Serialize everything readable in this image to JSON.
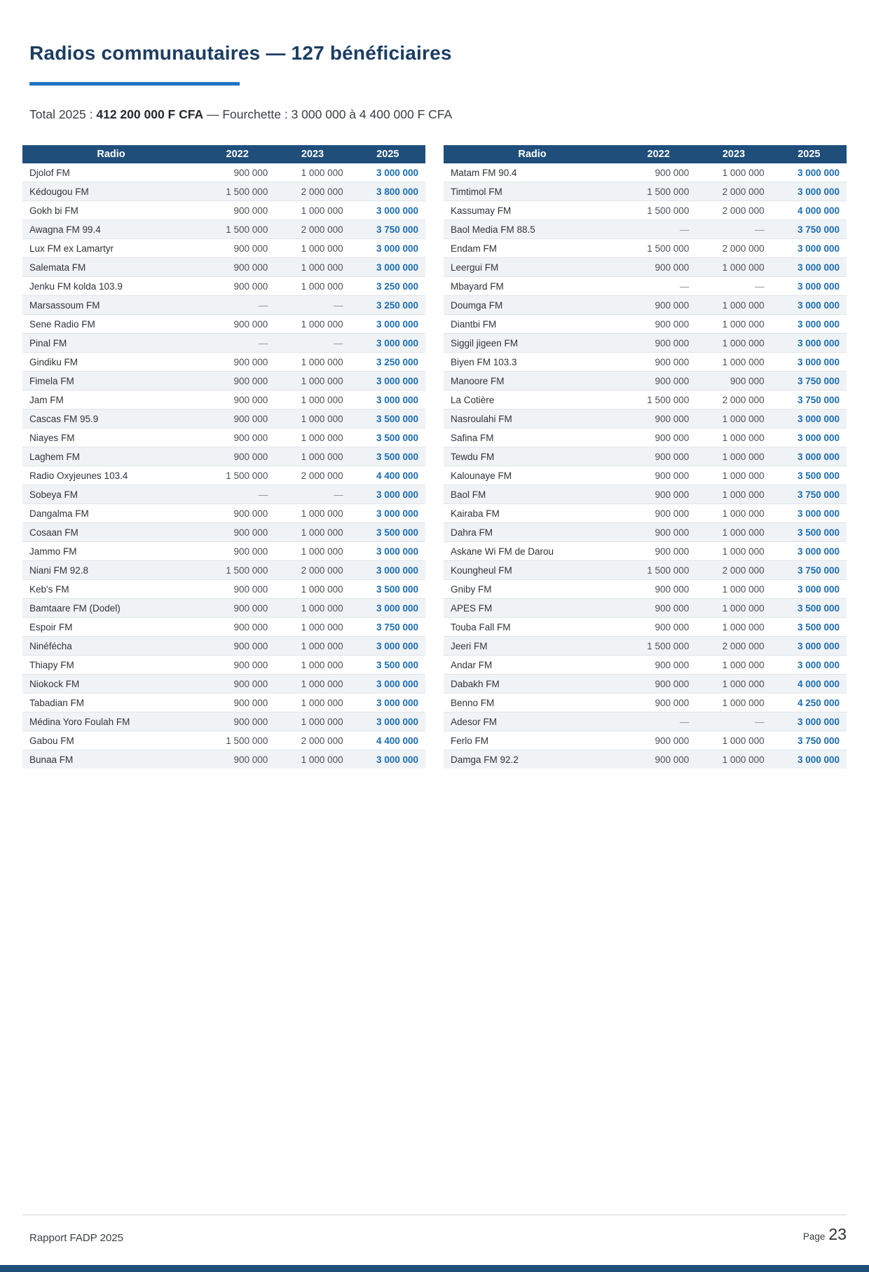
{
  "colors": {
    "header_bg": "#1f4e7b",
    "accent": "#2173c4",
    "title_color": "#1c3d63",
    "value_2025": "#1a6cb3"
  },
  "page": {
    "title": "Radios communautaires — 127 bénéficiaires"
  },
  "summary": {
    "label": "Total 2025 : ",
    "total": "412 200 000 F CFA",
    "separator": " — ",
    "range": "Fourchette : 3 000 000 à 4 400 000 F CFA"
  },
  "tables": [
    {
      "columns": [
        "Radio",
        "2022",
        "2023",
        "2025"
      ],
      "rows": [
        [
          "Djolof FM",
          "900 000",
          "1 000 000",
          "3 000 000"
        ],
        [
          "Kédougou FM",
          "1 500 000",
          "2 000 000",
          "3 800 000"
        ],
        [
          "Gokh bi FM",
          "900 000",
          "1 000 000",
          "3 000 000"
        ],
        [
          "Awagna FM 99.4",
          "1 500 000",
          "2 000 000",
          "3 750 000"
        ],
        [
          "Lux FM ex Lamartyr",
          "900 000",
          "1 000 000",
          "3 000 000"
        ],
        [
          "Salemata FM",
          "900 000",
          "1 000 000",
          "3 000 000"
        ],
        [
          "Jenku FM kolda 103.9",
          "900 000",
          "1 000 000",
          "3 250 000"
        ],
        [
          "Marsassoum FM",
          "—",
          "—",
          "3 250 000"
        ],
        [
          "Sene Radio FM",
          "900 000",
          "1 000 000",
          "3 000 000"
        ],
        [
          "Pinal FM",
          "—",
          "—",
          "3 000 000"
        ],
        [
          "Gindiku FM",
          "900 000",
          "1 000 000",
          "3 250 000"
        ],
        [
          "Fimela FM",
          "900 000",
          "1 000 000",
          "3 000 000"
        ],
        [
          "Jam FM",
          "900 000",
          "1 000 000",
          "3 000 000"
        ],
        [
          "Cascas FM 95.9",
          "900 000",
          "1 000 000",
          "3 500 000"
        ],
        [
          "Niayes FM",
          "900 000",
          "1 000 000",
          "3 500 000"
        ],
        [
          "Laghem FM",
          "900 000",
          "1 000 000",
          "3 500 000"
        ],
        [
          "Radio Oxyjeunes 103.4",
          "1 500 000",
          "2 000 000",
          "4 400 000"
        ],
        [
          "Sobeya FM",
          "—",
          "—",
          "3 000 000"
        ],
        [
          "Dangalma FM",
          "900 000",
          "1 000 000",
          "3 000 000"
        ],
        [
          "Cosaan FM",
          "900 000",
          "1 000 000",
          "3 500 000"
        ],
        [
          "Jammo FM",
          "900 000",
          "1 000 000",
          "3 000 000"
        ],
        [
          "Niani FM 92.8",
          "1 500 000",
          "2 000 000",
          "3 000 000"
        ],
        [
          "Keb's FM",
          "900 000",
          "1 000 000",
          "3 500 000"
        ],
        [
          "Bamtaare FM (Dodel)",
          "900 000",
          "1 000 000",
          "3 000 000"
        ],
        [
          "Espoir FM",
          "900 000",
          "1 000 000",
          "3 750 000"
        ],
        [
          "Ninéfécha",
          "900 000",
          "1 000 000",
          "3 000 000"
        ],
        [
          "Thiapy FM",
          "900 000",
          "1 000 000",
          "3 500 000"
        ],
        [
          "Niokock FM",
          "900 000",
          "1 000 000",
          "3 000 000"
        ],
        [
          "Tabadian FM",
          "900 000",
          "1 000 000",
          "3 000 000"
        ],
        [
          "Médina Yoro Foulah FM",
          "900 000",
          "1 000 000",
          "3 000 000"
        ],
        [
          "Gabou FM",
          "1 500 000",
          "2 000 000",
          "4 400 000"
        ],
        [
          "Bunaa FM",
          "900 000",
          "1 000 000",
          "3 000 000"
        ]
      ]
    },
    {
      "columns": [
        "Radio",
        "2022",
        "2023",
        "2025"
      ],
      "rows": [
        [
          "Matam FM 90.4",
          "900 000",
          "1 000 000",
          "3 000 000"
        ],
        [
          "Timtimol FM",
          "1 500 000",
          "2 000 000",
          "3 000 000"
        ],
        [
          "Kassumay FM",
          "1 500 000",
          "2 000 000",
          "4 000 000"
        ],
        [
          "Baol Media FM 88.5",
          "—",
          "—",
          "3 750 000"
        ],
        [
          "Endam FM",
          "1 500 000",
          "2 000 000",
          "3 000 000"
        ],
        [
          "Leergui FM",
          "900 000",
          "1 000 000",
          "3 000 000"
        ],
        [
          "Mbayard FM",
          "—",
          "—",
          "3 000 000"
        ],
        [
          "Doumga FM",
          "900 000",
          "1 000 000",
          "3 000 000"
        ],
        [
          "Diantbi FM",
          "900 000",
          "1 000 000",
          "3 000 000"
        ],
        [
          "Siggil jigeen FM",
          "900 000",
          "1 000 000",
          "3 000 000"
        ],
        [
          "Biyen FM 103.3",
          "900 000",
          "1 000 000",
          "3 000 000"
        ],
        [
          "Manoore FM",
          "900 000",
          "900 000",
          "3 750 000"
        ],
        [
          "La Cotière",
          "1 500 000",
          "2 000 000",
          "3 750 000"
        ],
        [
          "Nasroulahi FM",
          "900 000",
          "1 000 000",
          "3 000 000"
        ],
        [
          "Safina FM",
          "900 000",
          "1 000 000",
          "3 000 000"
        ],
        [
          "Tewdu FM",
          "900 000",
          "1 000 000",
          "3 000 000"
        ],
        [
          "Kalounaye FM",
          "900 000",
          "1 000 000",
          "3 500 000"
        ],
        [
          "Baol FM",
          "900 000",
          "1 000 000",
          "3 750 000"
        ],
        [
          "Kairaba FM",
          "900 000",
          "1 000 000",
          "3 000 000"
        ],
        [
          "Dahra FM",
          "900 000",
          "1 000 000",
          "3 500 000"
        ],
        [
          "Askane Wi FM de Darou",
          "900 000",
          "1 000 000",
          "3 000 000"
        ],
        [
          "Koungheul FM",
          "1 500 000",
          "2 000 000",
          "3 750 000"
        ],
        [
          "Gniby FM",
          "900 000",
          "1 000 000",
          "3 000 000"
        ],
        [
          "APES FM",
          "900 000",
          "1 000 000",
          "3 500 000"
        ],
        [
          "Touba Fall FM",
          "900 000",
          "1 000 000",
          "3 500 000"
        ],
        [
          "Jeeri FM",
          "1 500 000",
          "2 000 000",
          "3 000 000"
        ],
        [
          "Andar FM",
          "900 000",
          "1 000 000",
          "3 000 000"
        ],
        [
          "Dabakh FM",
          "900 000",
          "1 000 000",
          "4 000 000"
        ],
        [
          "Benno FM",
          "900 000",
          "1 000 000",
          "4 250 000"
        ],
        [
          "Adesor FM",
          "—",
          "—",
          "3 000 000"
        ],
        [
          "Ferlo FM",
          "900 000",
          "1 000 000",
          "3 750 000"
        ],
        [
          "Damga FM 92.2",
          "900 000",
          "1 000 000",
          "3 000 000"
        ]
      ]
    }
  ],
  "footer": {
    "left": "Rapport FADP 2025",
    "page_label": "Page",
    "page_number": "23"
  }
}
